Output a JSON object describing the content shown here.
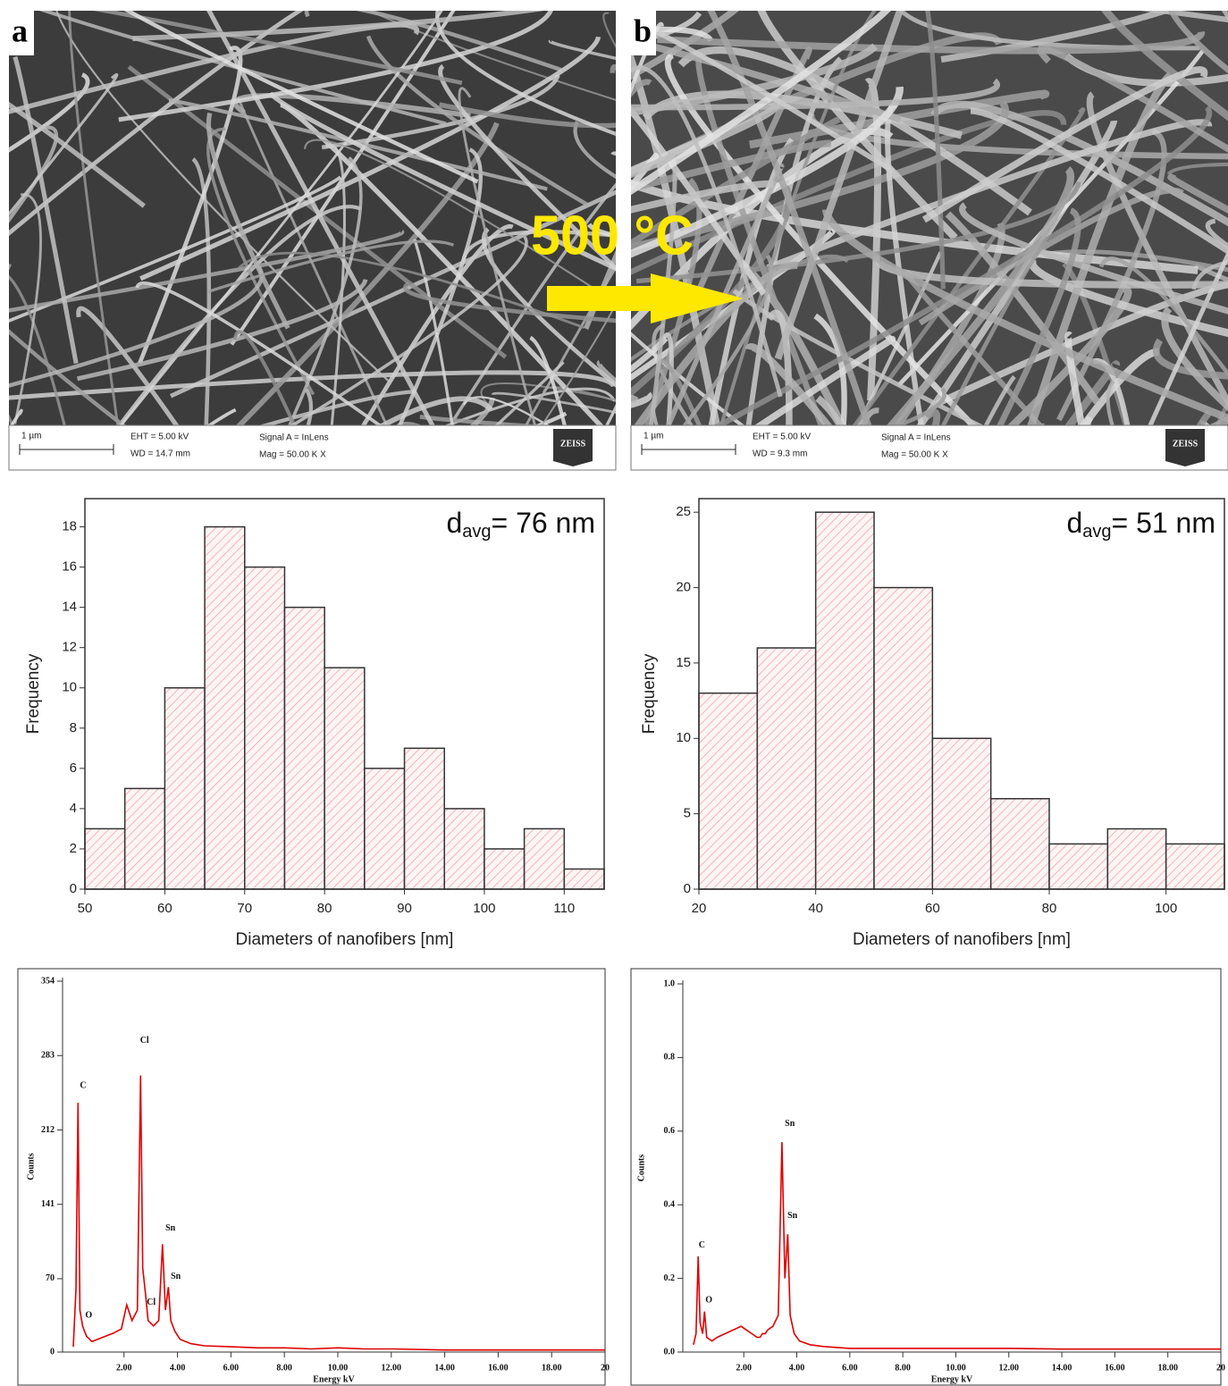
{
  "panels": [
    {
      "label": "a",
      "scale": "1 µm",
      "eht": "EHT = 5.00 kV",
      "wd": "WD = 14.7 mm",
      "signal": "Signal A = InLens",
      "mag": "Mag = 50.00 K X",
      "logo": "ZEISS"
    },
    {
      "label": "b",
      "scale": "1 µm",
      "eht": "EHT = 5.00 kV",
      "wd": "WD = 9.3 mm",
      "signal": "Signal A = InLens",
      "mag": "Mag = 50.00 K X",
      "logo": "ZEISS"
    }
  ],
  "arrow_label": "500 °C",
  "chart_data": [
    {
      "type": "histogram",
      "bins": [
        50,
        55,
        60,
        65,
        70,
        75,
        80,
        85,
        90,
        95,
        100,
        105,
        110,
        115
      ],
      "values": [
        3,
        5,
        10,
        18,
        16,
        14,
        11,
        6,
        7,
        4,
        2,
        3,
        1
      ],
      "color": "#e08080",
      "xlim": [
        50,
        115
      ],
      "xticks": [
        50,
        60,
        70,
        80,
        90,
        100,
        110
      ],
      "ylim": [
        0,
        19.4
      ],
      "yticks": [
        0,
        2,
        4,
        6,
        8,
        10,
        12,
        14,
        16,
        18
      ],
      "xlabel": "Diameters of nanofibers [nm]",
      "ylabel": "Frequency",
      "annotation": {
        "main": "d",
        "sub": "avg",
        "rest": "= 76 nm"
      }
    },
    {
      "type": "histogram",
      "bins": [
        20,
        30,
        40,
        50,
        60,
        70,
        80,
        90,
        100,
        110
      ],
      "values": [
        13,
        16,
        25,
        20,
        10,
        6,
        3,
        4,
        3
      ],
      "color": "#e08080",
      "xlim": [
        20,
        110
      ],
      "xticks": [
        20,
        40,
        60,
        80,
        100
      ],
      "ylim": [
        0,
        25.9
      ],
      "yticks": [
        0,
        5,
        10,
        15,
        20,
        25
      ],
      "xlabel": "Diameters of nanofibers [nm]",
      "ylabel": "Frequency",
      "annotation": {
        "main": "d",
        "sub": "avg",
        "rest": "= 51 nm"
      }
    },
    {
      "type": "line",
      "color": "#e00000",
      "x": [
        0.1,
        0.2,
        0.28,
        0.35,
        0.45,
        0.52,
        0.6,
        0.8,
        1.0,
        1.3,
        1.6,
        1.9,
        2.1,
        2.3,
        2.5,
        2.62,
        2.7,
        2.81,
        2.9,
        3.1,
        3.3,
        3.44,
        3.55,
        3.66,
        3.75,
        3.9,
        4.1,
        4.5,
        5,
        6,
        7,
        8,
        9,
        10,
        11,
        12,
        14,
        16,
        18,
        20
      ],
      "values": [
        5,
        60,
        238,
        40,
        25,
        20,
        15,
        10,
        12,
        15,
        18,
        22,
        45,
        30,
        40,
        264,
        80,
        54,
        30,
        25,
        30,
        103,
        40,
        62,
        30,
        20,
        12,
        8,
        6,
        5,
        4,
        4,
        3,
        4,
        3,
        3,
        2,
        2,
        2,
        2
      ],
      "xlim": [
        -0.3,
        20
      ],
      "xticks": [
        {
          "value": 2,
          "label": "2.00"
        },
        {
          "value": 4,
          "label": "4.00"
        },
        {
          "value": 6,
          "label": "6.00"
        },
        {
          "value": 8,
          "label": "8.00"
        },
        {
          "value": 10,
          "label": "10.00"
        },
        {
          "value": 12,
          "label": "12.00"
        },
        {
          "value": 14,
          "label": "14.00"
        },
        {
          "value": 16,
          "label": "16.00"
        },
        {
          "value": 18,
          "label": "18.00"
        },
        20
      ],
      "ylim": [
        0,
        354
      ],
      "yticks": [
        0,
        70,
        141,
        212,
        283,
        354
      ],
      "xlabel": "Energy kV",
      "ylabel": "Counts",
      "annotations": [
        {
          "text": "C",
          "x": 0.35,
          "y": 254
        },
        {
          "text": "Cl",
          "x": 2.6,
          "y": 297
        },
        {
          "text": "Sn",
          "x": 3.55,
          "y": 118
        },
        {
          "text": "Sn",
          "x": 3.75,
          "y": 72
        },
        {
          "text": "Cl",
          "x": 2.85,
          "y": 47
        },
        {
          "text": "O",
          "x": 0.55,
          "y": 35
        }
      ]
    },
    {
      "type": "line",
      "color": "#e00000",
      "x": [
        0.1,
        0.2,
        0.28,
        0.35,
        0.45,
        0.52,
        0.6,
        0.8,
        1.0,
        1.3,
        1.6,
        1.9,
        2.1,
        2.3,
        2.5,
        2.62,
        2.7,
        2.81,
        2.9,
        3.1,
        3.3,
        3.44,
        3.55,
        3.66,
        3.75,
        3.9,
        4.1,
        4.5,
        5,
        6,
        7,
        8,
        9,
        10,
        11,
        12,
        14,
        16,
        18,
        20
      ],
      "values": [
        0.02,
        0.05,
        0.26,
        0.08,
        0.05,
        0.11,
        0.04,
        0.03,
        0.04,
        0.05,
        0.06,
        0.07,
        0.06,
        0.05,
        0.04,
        0.04,
        0.05,
        0.05,
        0.06,
        0.07,
        0.1,
        0.57,
        0.2,
        0.32,
        0.1,
        0.05,
        0.03,
        0.02,
        0.015,
        0.01,
        0.01,
        0.01,
        0.01,
        0.01,
        0.01,
        0.01,
        0.008,
        0.008,
        0.008,
        0.008
      ],
      "xlim": [
        -0.3,
        20
      ],
      "xticks": [
        {
          "value": 2,
          "label": "2.00"
        },
        {
          "value": 4,
          "label": "4.00"
        },
        {
          "value": 6,
          "label": "6.00"
        },
        {
          "value": 8,
          "label": "8.00"
        },
        {
          "value": 10,
          "label": "10.00"
        },
        {
          "value": 12,
          "label": "12.00"
        },
        {
          "value": 14,
          "label": "14.00"
        },
        {
          "value": 16,
          "label": "16.00"
        },
        {
          "value": 18,
          "label": "18.00"
        },
        20
      ],
      "ylim": [
        0,
        1
      ],
      "yticks": [
        {
          "value": 0,
          "label": "0.0"
        },
        {
          "value": 0.2,
          "label": "0.2"
        },
        {
          "value": 0.4,
          "label": "0.4"
        },
        {
          "value": 0.6,
          "label": "0.6"
        },
        {
          "value": 0.8,
          "label": "0.8"
        },
        {
          "value": 1,
          "label": "1.0"
        }
      ],
      "xlabel": "Energy kV",
      "ylabel": "Counts",
      "annotations": [
        {
          "text": "Sn",
          "x": 3.55,
          "y": 0.62
        },
        {
          "text": "Sn",
          "x": 3.65,
          "y": 0.37
        },
        {
          "text": "C",
          "x": 0.3,
          "y": 0.29
        },
        {
          "text": "O",
          "x": 0.55,
          "y": 0.14
        }
      ]
    }
  ]
}
